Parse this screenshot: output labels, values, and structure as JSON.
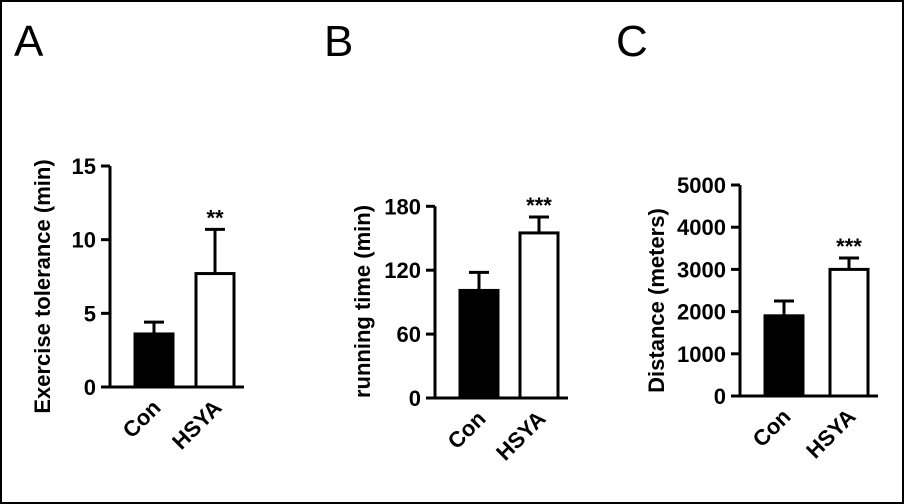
{
  "chart_data": [
    {
      "type": "bar",
      "panel": "A",
      "categories": [
        "Con",
        "HSYA"
      ],
      "values": [
        3.6,
        7.7
      ],
      "errors": [
        0.8,
        3.0
      ],
      "fills": [
        "#000000",
        "#ffffff"
      ],
      "significance": [
        "",
        "**"
      ],
      "ylabel": "Exercise tolerance (min)",
      "ylim": [
        0,
        15
      ],
      "yticks": [
        0,
        5,
        10,
        15
      ],
      "title": "",
      "xlabel": ""
    },
    {
      "type": "bar",
      "panel": "B",
      "categories": [
        "Con",
        "HSYA"
      ],
      "values": [
        101,
        155
      ],
      "errors": [
        17,
        15
      ],
      "fills": [
        "#000000",
        "#ffffff"
      ],
      "significance": [
        "",
        "***"
      ],
      "ylabel": "running time (min)",
      "ylim": [
        0,
        200
      ],
      "yticks": [
        0,
        60,
        120,
        180
      ],
      "title": "",
      "xlabel": ""
    },
    {
      "type": "bar",
      "panel": "C",
      "categories": [
        "Con",
        "HSYA"
      ],
      "values": [
        1900,
        3000
      ],
      "errors": [
        350,
        270
      ],
      "fills": [
        "#000000",
        "#ffffff"
      ],
      "significance": [
        "",
        "***"
      ],
      "ylabel": "Distance (meters)",
      "ylim": [
        0,
        5000
      ],
      "yticks": [
        0,
        1000,
        2000,
        3000,
        4000,
        5000
      ],
      "title": "",
      "xlabel": ""
    }
  ]
}
